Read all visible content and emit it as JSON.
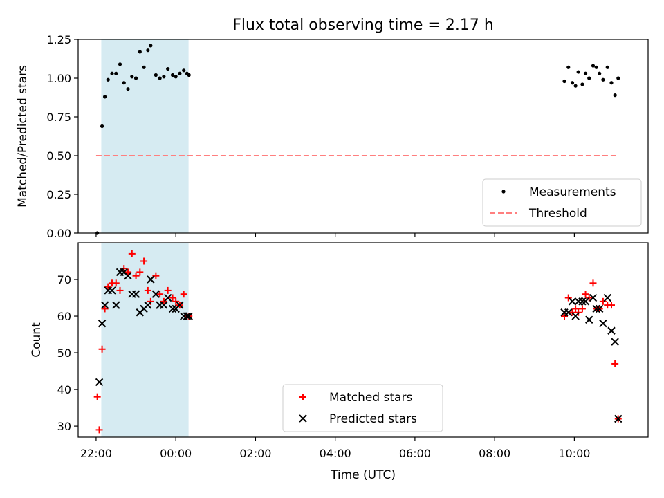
{
  "title": "Flux total observing time = 2.17 h",
  "shared_x_axis": {
    "label": "Time (UTC)",
    "ticks": [
      "22:00",
      "00:00",
      "02:00",
      "04:00",
      "06:00",
      "08:00",
      "10:00"
    ],
    "tick_hours": [
      22,
      24,
      26,
      28,
      30,
      32,
      34
    ]
  },
  "shaded_interval_hours": [
    22.13,
    24.32
  ],
  "colors": {
    "shade": "#add8e6",
    "measurements": "#000000",
    "threshold": "#ff7f7f",
    "matched": "#ff0000",
    "predicted": "#000000"
  },
  "chart_data": [
    {
      "type": "scatter",
      "ylabel": "Matched/Predicted stars",
      "ylim": [
        0,
        1.25
      ],
      "yticks": [
        "0.00",
        "0.25",
        "0.50",
        "0.75",
        "1.00",
        "1.25"
      ],
      "ytick_values": [
        0,
        0.25,
        0.5,
        0.75,
        1.0,
        1.25
      ],
      "legend": {
        "placement": "lower right",
        "entries": [
          "Measurements",
          "Threshold"
        ]
      },
      "threshold": {
        "name": "Threshold",
        "value": 0.5,
        "x_range": [
          22.0,
          35.1
        ]
      },
      "series": [
        {
          "name": "Measurements",
          "x": [
            22.03,
            22.15,
            22.22,
            22.3,
            22.4,
            22.5,
            22.6,
            22.7,
            22.8,
            22.9,
            23.0,
            23.1,
            23.2,
            23.3,
            23.37,
            23.5,
            23.6,
            23.7,
            23.8,
            23.92,
            24.0,
            24.1,
            24.2,
            24.28,
            24.33,
            33.75,
            33.85,
            33.95,
            34.03,
            34.1,
            34.2,
            34.28,
            34.37,
            34.47,
            34.55,
            34.63,
            34.72,
            34.83,
            34.93,
            35.02,
            35.1
          ],
          "y": [
            0.0,
            0.69,
            0.88,
            0.99,
            1.03,
            1.03,
            1.09,
            0.97,
            0.93,
            1.01,
            1.0,
            1.17,
            1.07,
            1.18,
            1.21,
            1.02,
            1.0,
            1.01,
            1.06,
            1.02,
            1.01,
            1.03,
            1.05,
            1.03,
            1.02,
            0.98,
            1.07,
            0.97,
            0.95,
            1.04,
            0.96,
            1.03,
            1.0,
            1.08,
            1.07,
            1.03,
            0.99,
            1.07,
            0.97,
            0.89,
            1.0
          ]
        }
      ]
    },
    {
      "type": "scatter",
      "ylabel": "Count",
      "ylim": [
        27,
        80
      ],
      "yticks": [
        "30",
        "40",
        "50",
        "60",
        "70"
      ],
      "ytick_values": [
        30,
        40,
        50,
        60,
        70
      ],
      "legend": {
        "placement": "lower center",
        "entries": [
          "Matched stars",
          "Predicted stars"
        ]
      },
      "series": [
        {
          "name": "Matched stars",
          "x": [
            22.03,
            22.08,
            22.15,
            22.22,
            22.3,
            22.4,
            22.5,
            22.6,
            22.7,
            22.8,
            22.9,
            23.0,
            23.1,
            23.2,
            23.3,
            23.37,
            23.5,
            23.6,
            23.7,
            23.8,
            23.92,
            24.0,
            24.1,
            24.2,
            24.28,
            24.33,
            33.75,
            33.85,
            33.95,
            34.03,
            34.1,
            34.2,
            34.28,
            34.37,
            34.47,
            34.55,
            34.63,
            34.72,
            34.83,
            34.93,
            35.02,
            35.1
          ],
          "y": [
            38,
            29,
            51,
            62,
            68,
            69,
            69,
            67,
            73,
            72,
            77,
            71,
            72,
            75,
            67,
            64,
            71,
            66,
            64,
            67,
            65,
            64,
            63,
            66,
            60,
            60,
            60,
            65,
            61,
            62,
            61,
            62,
            66,
            65,
            69,
            62,
            62,
            64,
            63,
            63,
            47,
            32
          ]
        },
        {
          "name": "Predicted stars",
          "x": [
            22.08,
            22.15,
            22.22,
            22.3,
            22.4,
            22.5,
            22.6,
            22.7,
            22.8,
            22.9,
            23.0,
            23.1,
            23.2,
            23.3,
            23.37,
            23.5,
            23.6,
            23.7,
            23.8,
            23.92,
            24.0,
            24.1,
            24.2,
            24.28,
            24.33,
            33.75,
            33.85,
            33.95,
            34.03,
            34.1,
            34.2,
            34.28,
            34.37,
            34.47,
            34.55,
            34.63,
            34.72,
            34.83,
            34.93,
            35.02,
            35.1
          ],
          "y": [
            42,
            58,
            63,
            67,
            67,
            63,
            72,
            72,
            71,
            66,
            66,
            61,
            62,
            63,
            70,
            66,
            63,
            63,
            65,
            62,
            62,
            63,
            60,
            60,
            60,
            61,
            61,
            64,
            60,
            64,
            64,
            64,
            59,
            65,
            62,
            62,
            58,
            65,
            56,
            53,
            32
          ]
        }
      ]
    }
  ]
}
